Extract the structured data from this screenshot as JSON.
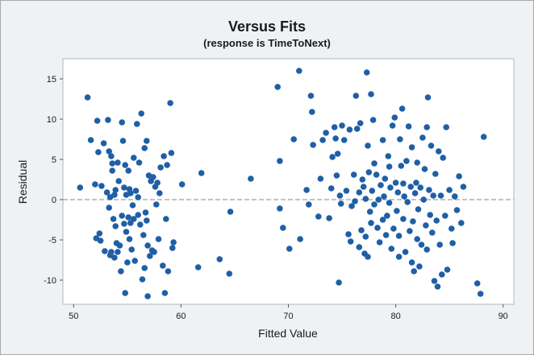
{
  "chart_data": {
    "type": "scatter",
    "title": "Versus Fits",
    "subtitle": "(response is TimeToNext)",
    "xlabel": "Fitted Value",
    "ylabel": "Residual",
    "xlim": [
      49,
      91
    ],
    "ylim": [
      -13,
      17.5
    ],
    "xticks": [
      50,
      60,
      70,
      80,
      90
    ],
    "yticks": [
      15,
      10,
      5,
      0,
      -5,
      -10
    ],
    "reference_line": 0,
    "grid": false,
    "colors": {
      "point": "#1f5fa6",
      "reference_line": "#a0a0a0",
      "plot_background": "#ffffff",
      "background": "#eff2f5"
    },
    "points": [
      [
        50.6,
        1.5
      ],
      [
        51.3,
        12.7
      ],
      [
        51.6,
        7.4
      ],
      [
        52.0,
        1.9
      ],
      [
        52.1,
        -4.8
      ],
      [
        52.2,
        9.8
      ],
      [
        52.3,
        5.9
      ],
      [
        52.4,
        -4.2
      ],
      [
        52.5,
        -5.1
      ],
      [
        52.6,
        1.7
      ],
      [
        52.8,
        7.0
      ],
      [
        52.9,
        -6.4
      ],
      [
        53.1,
        0.9
      ],
      [
        53.2,
        9.9
      ],
      [
        53.3,
        6.0
      ],
      [
        53.3,
        -1.0
      ],
      [
        53.4,
        0.3
      ],
      [
        53.4,
        -6.9
      ],
      [
        53.5,
        5.4
      ],
      [
        53.5,
        -6.5
      ],
      [
        53.6,
        3.6
      ],
      [
        53.6,
        4.5
      ],
      [
        53.7,
        -2.4
      ],
      [
        53.8,
        -7.2
      ],
      [
        53.8,
        0.6
      ],
      [
        53.9,
        1.2
      ],
      [
        53.9,
        -3.3
      ],
      [
        54.0,
        -5.4
      ],
      [
        54.1,
        4.6
      ],
      [
        54.1,
        -6.5
      ],
      [
        54.2,
        2.3
      ],
      [
        54.3,
        -5.7
      ],
      [
        54.4,
        -8.9
      ],
      [
        54.5,
        -2.0
      ],
      [
        54.5,
        9.6
      ],
      [
        54.6,
        7.3
      ],
      [
        54.7,
        1.5
      ],
      [
        54.7,
        -3.0
      ],
      [
        54.8,
        -11.6
      ],
      [
        54.8,
        4.3
      ],
      [
        54.9,
        0.6
      ],
      [
        54.9,
        -4.0
      ],
      [
        55.0,
        -7.8
      ],
      [
        55.1,
        3.6
      ],
      [
        55.1,
        -2.2
      ],
      [
        55.2,
        1.3
      ],
      [
        55.2,
        -4.9
      ],
      [
        55.3,
        -2.9
      ],
      [
        55.3,
        0.8
      ],
      [
        55.4,
        -6.2
      ],
      [
        55.5,
        -0.7
      ],
      [
        55.6,
        5.2
      ],
      [
        55.6,
        -2.4
      ],
      [
        55.7,
        -7.6
      ],
      [
        55.8,
        1.1
      ],
      [
        55.9,
        9.4
      ],
      [
        56.0,
        -1.9
      ],
      [
        56.0,
        0.3
      ],
      [
        56.1,
        4.6
      ],
      [
        56.2,
        -3.1
      ],
      [
        56.3,
        10.7
      ],
      [
        56.4,
        -9.9
      ],
      [
        56.5,
        -4.4
      ],
      [
        56.6,
        6.4
      ],
      [
        56.6,
        -8.5
      ],
      [
        56.7,
        -1.6
      ],
      [
        56.8,
        -2.6
      ],
      [
        56.8,
        7.3
      ],
      [
        56.9,
        -12.0
      ],
      [
        56.9,
        -5.7
      ],
      [
        57.0,
        3.0
      ],
      [
        57.1,
        -7.0
      ],
      [
        57.2,
        2.3
      ],
      [
        57.3,
        -6.3
      ],
      [
        57.4,
        2.8
      ],
      [
        57.5,
        -6.5
      ],
      [
        57.6,
        1.6
      ],
      [
        57.7,
        -0.6
      ],
      [
        57.8,
        2.1
      ],
      [
        57.9,
        -4.9
      ],
      [
        58.0,
        0.8
      ],
      [
        58.1,
        4.0
      ],
      [
        58.3,
        -8.2
      ],
      [
        58.4,
        5.4
      ],
      [
        58.5,
        -11.6
      ],
      [
        58.6,
        -2.4
      ],
      [
        58.7,
        4.3
      ],
      [
        58.8,
        -8.9
      ],
      [
        59.0,
        12.0
      ],
      [
        59.1,
        5.8
      ],
      [
        59.2,
        -6.0
      ],
      [
        59.3,
        -5.3
      ],
      [
        60.1,
        1.9
      ],
      [
        61.6,
        -8.4
      ],
      [
        61.9,
        3.3
      ],
      [
        63.6,
        -7.4
      ],
      [
        64.5,
        -9.2
      ],
      [
        64.6,
        -1.5
      ],
      [
        66.5,
        2.6
      ],
      [
        69.0,
        14.0
      ],
      [
        69.2,
        4.8
      ],
      [
        69.2,
        -1.1
      ],
      [
        69.5,
        -3.5
      ],
      [
        70.1,
        -6.1
      ],
      [
        70.5,
        7.5
      ],
      [
        71.0,
        16.0
      ],
      [
        71.1,
        -4.9
      ],
      [
        71.7,
        1.2
      ],
      [
        71.9,
        -0.6
      ],
      [
        72.1,
        12.9
      ],
      [
        72.2,
        10.9
      ],
      [
        72.3,
        6.8
      ],
      [
        72.8,
        -2.1
      ],
      [
        73.0,
        2.6
      ],
      [
        73.2,
        7.4
      ],
      [
        73.5,
        8.3
      ],
      [
        73.8,
        -2.3
      ],
      [
        74.0,
        1.4
      ],
      [
        74.1,
        5.3
      ],
      [
        74.3,
        9.0
      ],
      [
        74.4,
        7.6
      ],
      [
        74.5,
        3.0
      ],
      [
        74.6,
        5.7
      ],
      [
        74.7,
        -10.3
      ],
      [
        74.8,
        0.5
      ],
      [
        74.9,
        -0.5
      ],
      [
        75.0,
        9.2
      ],
      [
        75.2,
        7.4
      ],
      [
        75.4,
        1.1
      ],
      [
        75.6,
        -4.3
      ],
      [
        75.7,
        8.7
      ],
      [
        75.8,
        -5.2
      ],
      [
        75.9,
        -0.8
      ],
      [
        76.1,
        3.1
      ],
      [
        76.3,
        12.9
      ],
      [
        76.4,
        8.8
      ],
      [
        76.6,
        -5.9
      ],
      [
        76.6,
        0.9
      ],
      [
        76.7,
        9.5
      ],
      [
        76.8,
        -3.8
      ],
      [
        76.9,
        2.5
      ],
      [
        77.0,
        1.6
      ],
      [
        77.1,
        -6.7
      ],
      [
        77.2,
        0.1
      ],
      [
        77.2,
        -4.6
      ],
      [
        77.3,
        15.8
      ],
      [
        77.4,
        -7.1
      ],
      [
        77.4,
        6.7
      ],
      [
        77.5,
        3.4
      ],
      [
        77.6,
        -1.5
      ],
      [
        77.7,
        13.1
      ],
      [
        77.7,
        -2.9
      ],
      [
        77.8,
        1.1
      ],
      [
        77.9,
        9.9
      ],
      [
        78.0,
        4.5
      ],
      [
        78.0,
        -0.6
      ],
      [
        78.2,
        3.1
      ],
      [
        78.3,
        -3.5
      ],
      [
        78.4,
        0.0
      ],
      [
        78.5,
        -5.3
      ],
      [
        78.6,
        1.8
      ],
      [
        78.8,
        7.4
      ],
      [
        78.8,
        -2.5
      ],
      [
        78.9,
        0.4
      ],
      [
        79.0,
        2.6
      ],
      [
        79.1,
        -4.4
      ],
      [
        79.2,
        -2.0
      ],
      [
        79.3,
        5.4
      ],
      [
        79.4,
        -0.4
      ],
      [
        79.5,
        1.5
      ],
      [
        79.6,
        -6.1
      ],
      [
        79.7,
        9.2
      ],
      [
        79.8,
        -3.6
      ],
      [
        79.9,
        10.2
      ],
      [
        80.0,
        2.1
      ],
      [
        80.1,
        -1.4
      ],
      [
        80.2,
        0.9
      ],
      [
        80.3,
        -4.5
      ],
      [
        80.4,
        7.5
      ],
      [
        80.5,
        4.2
      ],
      [
        80.6,
        11.3
      ],
      [
        80.7,
        -2.4
      ],
      [
        80.7,
        2.0
      ],
      [
        80.8,
        0.4
      ],
      [
        80.9,
        -6.5
      ],
      [
        81.0,
        4.8
      ],
      [
        81.1,
        -0.3
      ],
      [
        81.2,
        9.1
      ],
      [
        81.3,
        -3.9
      ],
      [
        81.4,
        1.6
      ],
      [
        81.5,
        -7.8
      ],
      [
        81.5,
        6.5
      ],
      [
        81.6,
        -2.7
      ],
      [
        81.7,
        -8.9
      ],
      [
        81.8,
        0.8
      ],
      [
        81.9,
        2.1
      ],
      [
        82.0,
        -4.9
      ],
      [
        82.0,
        4.6
      ],
      [
        82.1,
        -1.2
      ],
      [
        82.2,
        -8.3
      ],
      [
        82.3,
        1.5
      ],
      [
        82.4,
        -5.6
      ],
      [
        82.5,
        7.7
      ],
      [
        82.6,
        0.0
      ],
      [
        82.7,
        3.8
      ],
      [
        82.8,
        -3.2
      ],
      [
        82.9,
        -6.2
      ],
      [
        83.0,
        12.7
      ],
      [
        83.1,
        1.2
      ],
      [
        83.2,
        -1.9
      ],
      [
        83.3,
        6.7
      ],
      [
        83.4,
        -4.1
      ],
      [
        83.5,
        0.5
      ],
      [
        83.6,
        -10.1
      ],
      [
        83.7,
        3.2
      ],
      [
        83.8,
        -2.6
      ],
      [
        83.9,
        -10.8
      ],
      [
        84.0,
        6.0
      ],
      [
        84.1,
        -5.6
      ],
      [
        84.2,
        0.5
      ],
      [
        84.3,
        -9.3
      ],
      [
        84.4,
        5.2
      ],
      [
        84.6,
        -2.0
      ],
      [
        84.7,
        9.0
      ],
      [
        84.8,
        -8.7
      ],
      [
        85.0,
        1.2
      ],
      [
        85.2,
        -3.6
      ],
      [
        85.3,
        -5.4
      ],
      [
        85.5,
        0.4
      ],
      [
        85.7,
        -1.3
      ],
      [
        85.9,
        2.9
      ],
      [
        86.1,
        -2.9
      ],
      [
        86.3,
        1.6
      ],
      [
        87.6,
        -10.4
      ],
      [
        87.9,
        -11.7
      ],
      [
        88.2,
        7.8
      ],
      [
        82.9,
        9.0
      ],
      [
        80.3,
        -7.1
      ],
      [
        79.4,
        4.1
      ],
      [
        76.2,
        -0.2
      ]
    ]
  }
}
